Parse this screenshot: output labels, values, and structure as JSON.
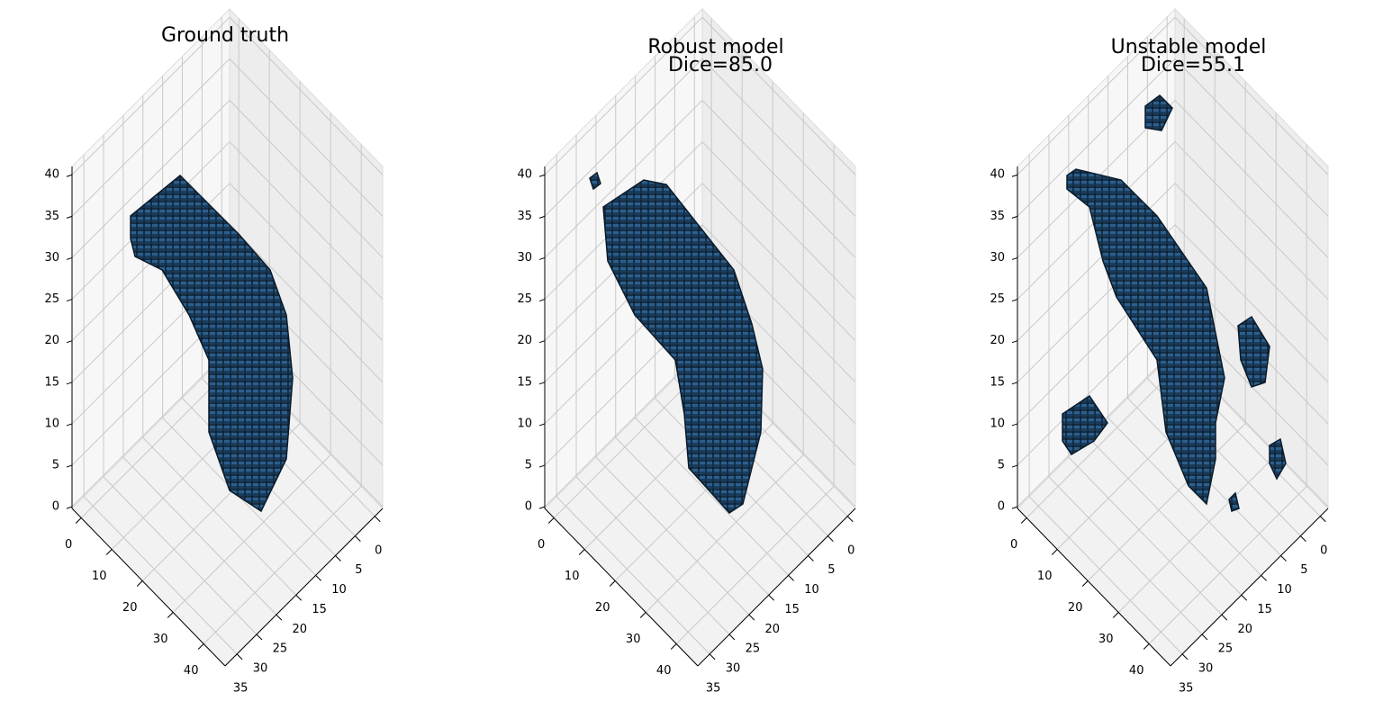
{
  "chart_data": [
    {
      "type": "voxel",
      "title": "Ground truth",
      "color": "#2b5f8e",
      "xlim": [
        -3,
        47
      ],
      "xticks": [
        0,
        10,
        20,
        30,
        40
      ],
      "ylim": [
        -2,
        38
      ],
      "yticks": [
        0,
        5,
        10,
        15,
        20,
        25,
        30,
        35
      ],
      "zlim": [
        -0.2,
        41
      ],
      "zticks": [
        0,
        5,
        10,
        15,
        20,
        25,
        30,
        35,
        40
      ]
    },
    {
      "type": "voxel",
      "title": "Robust model",
      "subtitle": "Dice=85.0",
      "color": "#2b5f8e",
      "xlim": [
        -3,
        47
      ],
      "xticks": [
        0,
        10,
        20,
        30,
        40
      ],
      "ylim": [
        -2,
        38
      ],
      "yticks": [
        0,
        5,
        10,
        15,
        20,
        25,
        30,
        35
      ],
      "zlim": [
        -0.2,
        41
      ],
      "zticks": [
        0,
        5,
        10,
        15,
        20,
        25,
        30,
        35,
        40
      ]
    },
    {
      "type": "voxel",
      "title": "Unstable model",
      "subtitle": "Dice=55.1",
      "color": "#2b5f8e",
      "xlim": [
        -3,
        47
      ],
      "xticks": [
        0,
        10,
        20,
        30,
        40
      ],
      "ylim": [
        -2,
        38
      ],
      "yticks": [
        0,
        5,
        10,
        15,
        20,
        25,
        30,
        35
      ],
      "zlim": [
        -0.2,
        41
      ],
      "zticks": [
        0,
        5,
        10,
        15,
        20,
        25,
        30,
        35,
        40
      ]
    }
  ]
}
